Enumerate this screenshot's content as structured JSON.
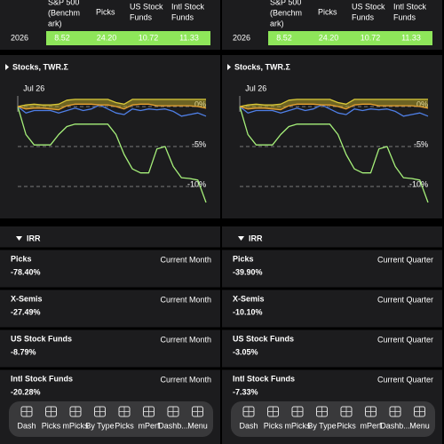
{
  "panels": [
    {
      "table": {
        "header": [
          [
            "S&P 500",
            "(Benchm",
            "ark)"
          ],
          [
            "Picks"
          ],
          [
            "US Stock",
            "Funds"
          ],
          [
            "Intl Stock",
            "Funds"
          ]
        ],
        "rows": [
          [
            "2026",
            "8.52",
            "24.20",
            "10.72",
            "11.33"
          ]
        ]
      },
      "chart": {
        "type": "line",
        "title": "Stocks, TWR.Σ",
        "categories": [
          null,
          "Jul 26",
          null,
          null,
          null,
          null,
          null,
          null,
          null,
          null,
          null,
          null,
          null,
          null,
          null,
          null,
          null,
          null,
          null,
          null,
          null,
          null,
          null,
          null
        ],
        "ylim": [
          -12.5,
          3
        ],
        "yticks": [
          {
            "value": 0,
            "label": "0%"
          },
          {
            "value": -5,
            "label": "-5%"
          },
          {
            "value": -10,
            "label": "-10%"
          }
        ],
        "series": [
          {
            "color": "#a6f07a",
            "values": [
              0,
              -3.5,
              -4.8,
              -4.8,
              -4.8,
              -3.5,
              -2.5,
              -2.2,
              -2.2,
              -2.2,
              -2.2,
              -2.2,
              -3.5,
              -6,
              -7.8,
              -8.3,
              -8.3,
              -5.3,
              -5,
              -7.5,
              -8.9,
              -9,
              -9.2,
              -12
            ]
          },
          {
            "color": "#4f7fe6",
            "values": [
              0,
              -0.8,
              -0.5,
              -0.5,
              -0.5,
              -0.8,
              -0.5,
              -0.2,
              -0.5,
              -0.3,
              0.2,
              -0.3,
              -0.8,
              -1,
              -0.3,
              -0.5,
              -0.3,
              -0.4,
              -0.3,
              -0.6,
              -1.2,
              -1,
              -0.8,
              -1.2
            ]
          },
          {
            "color": "#d8c838",
            "fill": "rgba(190,170,40,0.5)",
            "values": [
              0,
              0.2,
              0.3,
              0.2,
              0.2,
              0.3,
              0.8,
              0.9,
              0.9,
              0.9,
              0.9,
              0.9,
              0.5,
              0.3,
              0.9,
              0.9,
              0.9,
              0.9,
              0.9,
              0.9,
              0.9,
              0.9,
              0.9,
              0.9
            ]
          },
          {
            "color": "#e8a030",
            "values": [
              0,
              -0.3,
              -0.2,
              -0.2,
              -0.3,
              -0.4,
              0.1,
              0.3,
              0.3,
              0.3,
              0.2,
              0.2,
              0,
              -0.3,
              0.2,
              0.3,
              0.3,
              0.1,
              0.1,
              0.1,
              0.1,
              0.1,
              0,
              -0.2
            ]
          }
        ]
      },
      "irr": {
        "title": "IRR",
        "items": [
          {
            "name": "Picks",
            "value": "-78.40%",
            "period": "Current Month"
          },
          {
            "name": "X-Semis",
            "value": "-27.49%",
            "period": "Current Month"
          },
          {
            "name": "US Stock Funds",
            "value": "-8.79%",
            "period": "Current Month"
          },
          {
            "name": "Intl Stock Funds",
            "value": "-20.28%",
            "period": "Current Month"
          }
        ]
      },
      "tabs": [
        "Dash",
        "Picks",
        "mPicks",
        "By Type",
        "Picks",
        "mPerf",
        "Dashb...",
        "Menu"
      ]
    },
    {
      "table": {
        "header": [
          [
            "S&P 500",
            "(Benchm",
            "ark)"
          ],
          [
            "Picks"
          ],
          [
            "US Stock",
            "Funds"
          ],
          [
            "Intl Stock",
            "Funds"
          ]
        ],
        "rows": [
          [
            "2026",
            "8.52",
            "24.20",
            "10.72",
            "11.33"
          ]
        ]
      },
      "chart": {
        "type": "line",
        "title": "Stocks, TWR.Σ",
        "categories": [
          null,
          "Jul 26",
          null,
          null,
          null,
          null,
          null,
          null,
          null,
          null,
          null,
          null,
          null,
          null,
          null,
          null,
          null,
          null,
          null,
          null,
          null,
          null,
          null,
          null
        ],
        "ylim": [
          -12.5,
          3
        ],
        "yticks": [
          {
            "value": 0,
            "label": "0%"
          },
          {
            "value": -5,
            "label": "-5%"
          },
          {
            "value": -10,
            "label": "-10%"
          }
        ],
        "series": [
          {
            "color": "#a6f07a",
            "values": [
              0,
              -3.5,
              -4.8,
              -4.8,
              -4.8,
              -3.5,
              -2.5,
              -2.2,
              -2.2,
              -2.2,
              -2.2,
              -2.2,
              -3.5,
              -6,
              -7.8,
              -8.3,
              -8.3,
              -5.3,
              -5,
              -7.5,
              -8.9,
              -9,
              -9.2,
              -12
            ]
          },
          {
            "color": "#4f7fe6",
            "values": [
              0,
              -0.8,
              -0.5,
              -0.5,
              -0.5,
              -0.8,
              -0.5,
              -0.2,
              -0.5,
              -0.3,
              0.2,
              -0.3,
              -0.8,
              -1,
              -0.3,
              -0.5,
              -0.3,
              -0.4,
              -0.3,
              -0.6,
              -1.2,
              -1,
              -0.8,
              -1.2
            ]
          },
          {
            "color": "#d8c838",
            "fill": "rgba(190,170,40,0.5)",
            "values": [
              0,
              0.2,
              0.3,
              0.2,
              0.2,
              0.3,
              0.8,
              0.9,
              0.9,
              0.9,
              0.9,
              0.9,
              0.5,
              0.3,
              0.9,
              0.9,
              0.9,
              0.9,
              0.9,
              0.9,
              0.9,
              0.9,
              0.9,
              0.9
            ]
          },
          {
            "color": "#e8a030",
            "values": [
              0,
              -0.3,
              -0.2,
              -0.2,
              -0.3,
              -0.4,
              0.1,
              0.3,
              0.3,
              0.3,
              0.2,
              0.2,
              0,
              -0.3,
              0.2,
              0.3,
              0.3,
              0.1,
              0.1,
              0.1,
              0.1,
              0.1,
              0,
              -0.2
            ]
          }
        ]
      },
      "irr": {
        "title": "IRR",
        "items": [
          {
            "name": "Picks",
            "value": "-39.90%",
            "period": "Current Quarter"
          },
          {
            "name": "X-Semis",
            "value": "-10.10%",
            "period": "Current Quarter"
          },
          {
            "name": "US Stock Funds",
            "value": "-3.05%",
            "period": "Current Quarter"
          },
          {
            "name": "Intl Stock Funds",
            "value": "-7.33%",
            "period": "Current Quarter"
          }
        ]
      },
      "tabs": [
        "Dash",
        "Picks",
        "mPicks",
        "By Type",
        "Picks",
        "mPerf",
        "Dashb...",
        "Menu"
      ]
    }
  ]
}
